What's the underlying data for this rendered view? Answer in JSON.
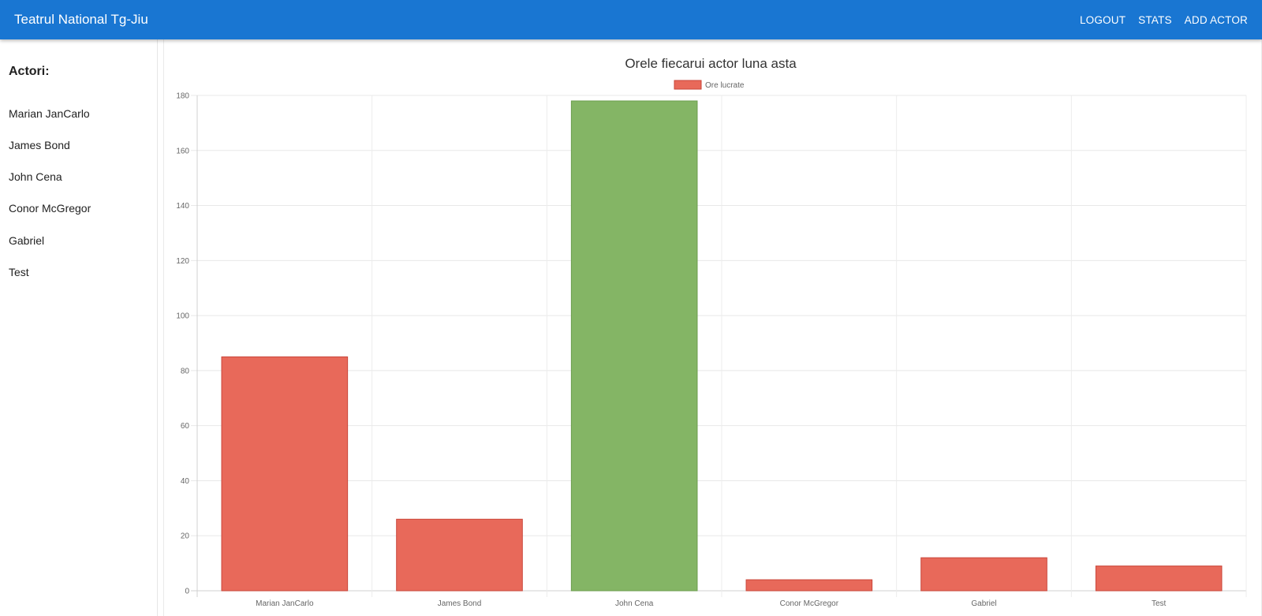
{
  "appbar": {
    "title": "Teatrul National Tg-Jiu",
    "nav": [
      "LOGOUT",
      "STATS",
      "ADD ACTOR"
    ]
  },
  "sidebar": {
    "heading": "Actori:",
    "actors": [
      "Marian JanCarlo",
      "James Bond",
      "John Cena",
      "Conor McGregor",
      "Gabriel",
      "Test"
    ]
  },
  "colors": {
    "appbar": "#1976d2",
    "bar_default": "#e8695a",
    "bar_default_border": "#c9463a",
    "bar_highlight": "#84b565",
    "bar_highlight_border": "#6c9d4e"
  },
  "chart_data": {
    "type": "bar",
    "title": "Orele fiecarui actor luna asta",
    "legend": [
      "Ore lucrate"
    ],
    "legend_position": "top",
    "categories": [
      "Marian JanCarlo",
      "James Bond",
      "John Cena",
      "Conor McGregor",
      "Gabriel",
      "Test"
    ],
    "series": [
      {
        "name": "Ore lucrate",
        "values": [
          85,
          26,
          178,
          4,
          12,
          9
        ]
      }
    ],
    "highlight_index": 2,
    "xlabel": "",
    "ylabel": "",
    "ylim": [
      0,
      180
    ],
    "yticks": [
      0,
      20,
      40,
      60,
      80,
      100,
      120,
      140,
      160,
      180
    ],
    "grid": true
  }
}
